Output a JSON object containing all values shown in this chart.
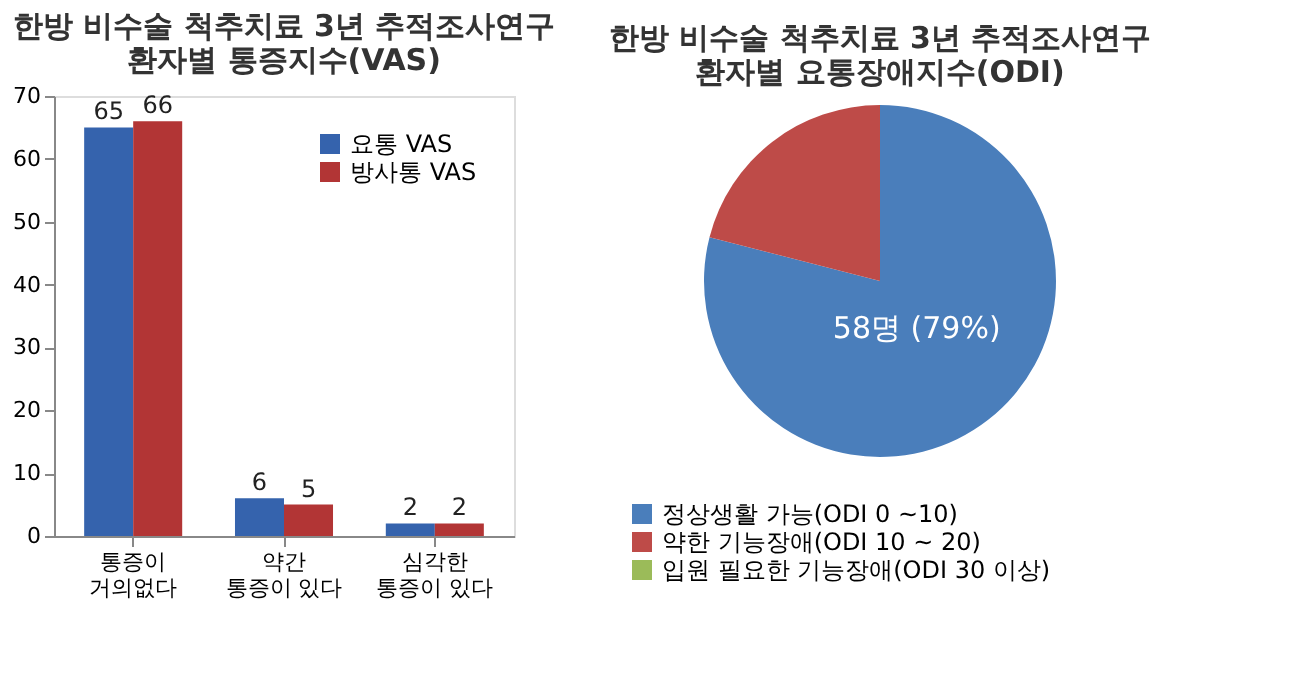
{
  "chart_data": [
    {
      "type": "bar",
      "title": "한방 비수술 척추치료 3년 추적조사연구\n환자별 통증지수(VAS)",
      "categories": [
        "통증이\n거의없다",
        "약간\n통증이 있다",
        "심각한\n통증이 있다"
      ],
      "series": [
        {
          "name": "요통 VAS",
          "color": "#3563ad",
          "values": [
            65,
            6,
            2
          ]
        },
        {
          "name": "방사통 VAS",
          "color": "#b23535",
          "values": [
            66,
            5,
            2
          ]
        }
      ],
      "ylim": [
        0,
        70
      ],
      "yticks": [
        0,
        10,
        20,
        30,
        40,
        50,
        60,
        70
      ],
      "grid": false,
      "legend": "top right",
      "data_labels": true
    },
    {
      "type": "pie",
      "title": "한방 비수술 척추치료 3년 추적조사연구\n환자별 요통장애지수(ODI)",
      "categories": [
        "정상생활 가능(ODI 0 ~10)",
        "약한 기능장애(ODI 10 ~ 20)",
        "입원 필요한 기능장애(ODI 30 이상)"
      ],
      "values": [
        79,
        21,
        0
      ],
      "colors": [
        "#4a7ebb",
        "#be4b48",
        "#9bbb59"
      ],
      "value_labels": [
        "58명 (79%)",
        null,
        null
      ],
      "legend": "bottom"
    }
  ]
}
